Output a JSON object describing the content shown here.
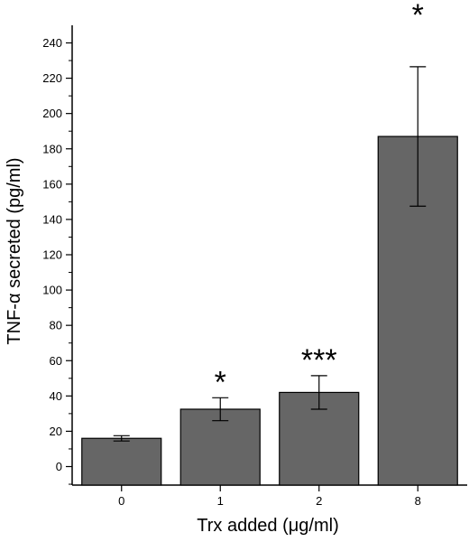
{
  "chart_data": {
    "type": "bar",
    "title": "",
    "xlabel": "Trx added (μg/ml)",
    "ylabel": "TNF-α secreted (pg/ml)",
    "categories": [
      "0",
      "1",
      "2",
      "8"
    ],
    "values": [
      16,
      32.5,
      42,
      187
    ],
    "errors": [
      1.5,
      6.5,
      9.5,
      39.5
    ],
    "significance": [
      "",
      "*",
      "***",
      "*"
    ],
    "ylim": [
      -10,
      250
    ],
    "yticks": [
      0,
      20,
      40,
      60,
      80,
      100,
      120,
      140,
      160,
      180,
      200,
      220,
      240
    ],
    "bar_color": "#666666",
    "grid": false,
    "legend": "none"
  }
}
